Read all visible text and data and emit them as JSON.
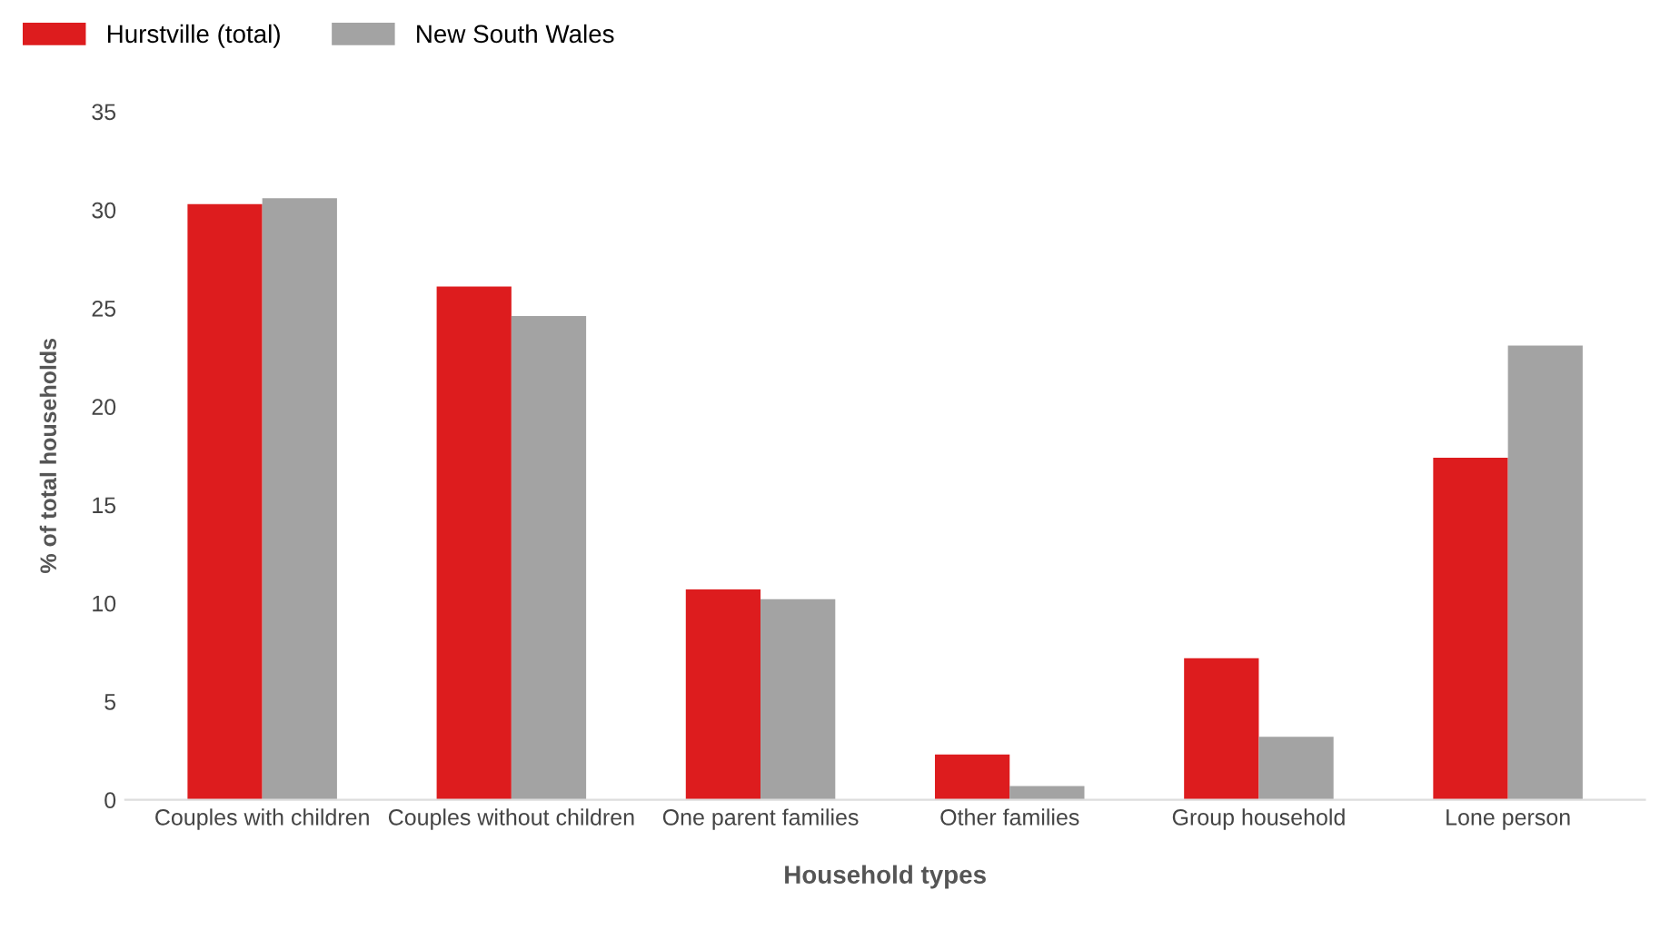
{
  "chart_data": {
    "type": "bar",
    "xlabel": "Household types",
    "ylabel": "% of total households",
    "categories": [
      "Couples with children",
      "Couples without children",
      "One parent families",
      "Other families",
      "Group household",
      "Lone person"
    ],
    "series": [
      {
        "name": "Hurstville (total)",
        "color": "#dd1c1e",
        "values": [
          30.3,
          26.1,
          10.7,
          2.3,
          7.2,
          17.4
        ]
      },
      {
        "name": "New South Wales",
        "color": "#a3a3a3",
        "values": [
          30.6,
          24.6,
          10.2,
          0.7,
          3.2,
          23.1
        ]
      }
    ],
    "ylim": [
      0,
      35
    ],
    "yticks": [
      0,
      5,
      10,
      15,
      20,
      25,
      30,
      35
    ],
    "grid": false,
    "legend": "top left"
  }
}
